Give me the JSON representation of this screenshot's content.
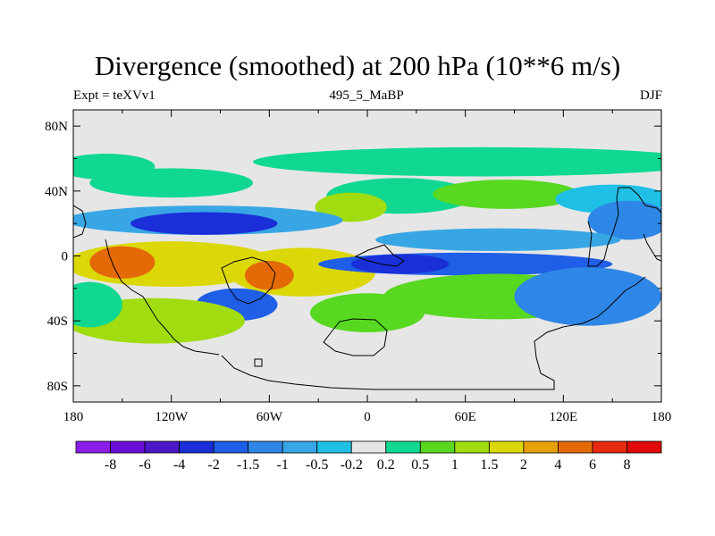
{
  "header": {
    "title": "Divergence (smoothed) at 200 hPa (10**6 m/s)",
    "left": "Expt = teXVv1",
    "center": "495_5_MaBP",
    "right": "DJF"
  },
  "chart_data": {
    "type": "heatmap",
    "title": "Divergence (smoothed) at 200 hPa (10**6 m/s)",
    "xlabel": "",
    "ylabel": "",
    "xlim": [
      -180,
      180
    ],
    "ylim": [
      -90,
      90
    ],
    "x_ticks": [
      {
        "value": -180,
        "label": "180"
      },
      {
        "value": -120,
        "label": "120W"
      },
      {
        "value": -60,
        "label": "60W"
      },
      {
        "value": 0,
        "label": "0"
      },
      {
        "value": 60,
        "label": "60E"
      },
      {
        "value": 120,
        "label": "120E"
      },
      {
        "value": 180,
        "label": "180"
      }
    ],
    "y_ticks": [
      {
        "value": 80,
        "label": "80N"
      },
      {
        "value": 40,
        "label": "40N"
      },
      {
        "value": 0,
        "label": "0"
      },
      {
        "value": -40,
        "label": "40S"
      },
      {
        "value": -80,
        "label": "80S"
      }
    ],
    "colorbar": {
      "labels": [
        "-8",
        "-6",
        "-4",
        "-2",
        "-1.5",
        "-1",
        "-0.5",
        "-0.2",
        "0.2",
        "0.5",
        "1",
        "1.5",
        "2",
        "4",
        "6",
        "8"
      ],
      "colors": [
        "#8a1de8",
        "#6a0fd8",
        "#4b18c8",
        "#1a2fd8",
        "#1f5ee6",
        "#2e86e6",
        "#38a6e4",
        "#20c0e6",
        "#e6e6e6",
        "#10d890",
        "#58d820",
        "#a0dc10",
        "#dcd808",
        "#e6a008",
        "#e46a08",
        "#e62a10",
        "#e00a0a"
      ]
    },
    "background_class_index": 8,
    "features": [
      {
        "lon": 70,
        "lat": 58,
        "rx": 140,
        "ry": 9,
        "value": 0.45
      },
      {
        "lon": -160,
        "lat": 55,
        "rx": 30,
        "ry": 8,
        "value": 0.45
      },
      {
        "lon": -120,
        "lat": 45,
        "rx": 50,
        "ry": 9,
        "value": 0.5
      },
      {
        "lon": 20,
        "lat": 37,
        "rx": 45,
        "ry": 11,
        "value": 0.5
      },
      {
        "lon": -10,
        "lat": 30,
        "rx": 22,
        "ry": 9,
        "value": 1.3
      },
      {
        "lon": 85,
        "lat": 38,
        "rx": 45,
        "ry": 9,
        "value": 0.6
      },
      {
        "lon": 150,
        "lat": 35,
        "rx": 35,
        "ry": 9,
        "value": -0.4
      },
      {
        "lon": -100,
        "lat": 22,
        "rx": 85,
        "ry": 9,
        "value": -0.8
      },
      {
        "lon": -100,
        "lat": 20,
        "rx": 45,
        "ry": 7,
        "value": -2.5
      },
      {
        "lon": 160,
        "lat": 22,
        "rx": 25,
        "ry": 12,
        "value": -1.2
      },
      {
        "lon": 80,
        "lat": 10,
        "rx": 75,
        "ry": 7,
        "value": -0.5
      },
      {
        "lon": -120,
        "lat": -5,
        "rx": 65,
        "ry": 14,
        "value": 1.6
      },
      {
        "lon": -40,
        "lat": -10,
        "rx": 45,
        "ry": 15,
        "value": 1.7
      },
      {
        "lon": -150,
        "lat": -4,
        "rx": 20,
        "ry": 10,
        "value": 5.0
      },
      {
        "lon": -60,
        "lat": -12,
        "rx": 15,
        "ry": 9,
        "value": 4.5
      },
      {
        "lon": 60,
        "lat": -5,
        "rx": 90,
        "ry": 7,
        "value": -1.5
      },
      {
        "lon": 20,
        "lat": -5,
        "rx": 30,
        "ry": 6,
        "value": -3.5
      },
      {
        "lon": 80,
        "lat": -25,
        "rx": 70,
        "ry": 14,
        "value": 0.8
      },
      {
        "lon": 135,
        "lat": -25,
        "rx": 45,
        "ry": 18,
        "value": -1.3
      },
      {
        "lon": -80,
        "lat": -30,
        "rx": 25,
        "ry": 10,
        "value": -1.5
      },
      {
        "lon": -130,
        "lat": -40,
        "rx": 55,
        "ry": 14,
        "value": 1.2
      },
      {
        "lon": 0,
        "lat": -35,
        "rx": 35,
        "ry": 12,
        "value": 0.7
      },
      {
        "lon": -170,
        "lat": -30,
        "rx": 20,
        "ry": 14,
        "value": 0.4
      }
    ]
  }
}
